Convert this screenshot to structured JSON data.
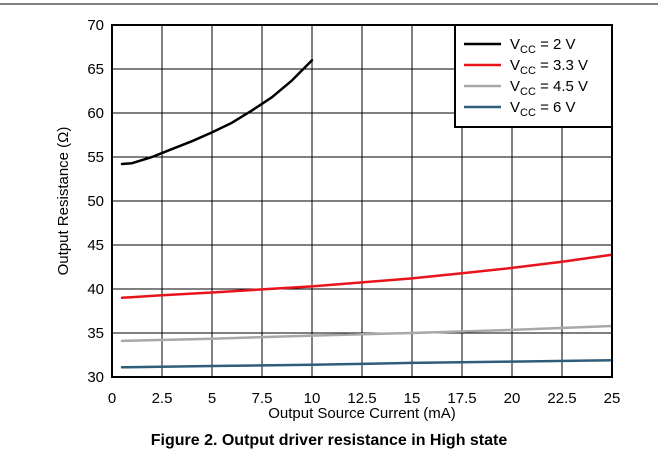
{
  "figure_caption": "Figure 2. Output driver resistance in High state",
  "chart_data": {
    "type": "line",
    "xlabel": "Output Source Current (mA)",
    "ylabel": "Output Resistance (Ω)",
    "xlim": [
      0,
      25
    ],
    "ylim": [
      30,
      70
    ],
    "x_ticks": [
      "0",
      "2.5",
      "5",
      "7.5",
      "10",
      "12.5",
      "15",
      "17.5",
      "20",
      "22.5",
      "25"
    ],
    "y_ticks": [
      "30",
      "35",
      "40",
      "45",
      "50",
      "55",
      "60",
      "65",
      "70"
    ],
    "grid": true,
    "legend_position": "top-right",
    "series": [
      {
        "name": "VCC = 2 V",
        "label_main": "V",
        "label_sub": "CC",
        "label_rest": " = 2 V",
        "color": "#000000",
        "x": [
          0.5,
          1,
          2,
          3,
          4,
          5,
          6,
          7,
          8,
          9,
          10
        ],
        "y": [
          54.2,
          54.3,
          55.0,
          55.9,
          56.8,
          57.8,
          58.9,
          60.3,
          61.8,
          63.7,
          66.0
        ]
      },
      {
        "name": "VCC = 3.3 V",
        "label_main": "V",
        "label_sub": "CC",
        "label_rest": " = 3.3 V",
        "color": "#e8141b",
        "x": [
          0.5,
          2.5,
          5,
          7.5,
          10,
          12.5,
          15,
          17.5,
          20,
          22.5,
          25
        ],
        "y": [
          39.0,
          39.3,
          39.6,
          39.95,
          40.3,
          40.75,
          41.2,
          41.8,
          42.4,
          43.1,
          43.9
        ]
      },
      {
        "name": "VCC = 4.5 V",
        "label_main": "V",
        "label_sub": "CC",
        "label_rest": " = 4.5 V",
        "color": "#a8a8a8",
        "x": [
          0.5,
          5,
          10,
          15,
          20,
          25
        ],
        "y": [
          34.1,
          34.35,
          34.7,
          35.0,
          35.35,
          35.8
        ]
      },
      {
        "name": "VCC = 6 V",
        "label_main": "V",
        "label_sub": "CC",
        "label_rest": " = 6 V",
        "color": "#2e5d7a",
        "x": [
          0.5,
          5,
          10,
          15,
          20,
          25
        ],
        "y": [
          31.1,
          31.25,
          31.4,
          31.6,
          31.75,
          31.9
        ]
      }
    ]
  }
}
